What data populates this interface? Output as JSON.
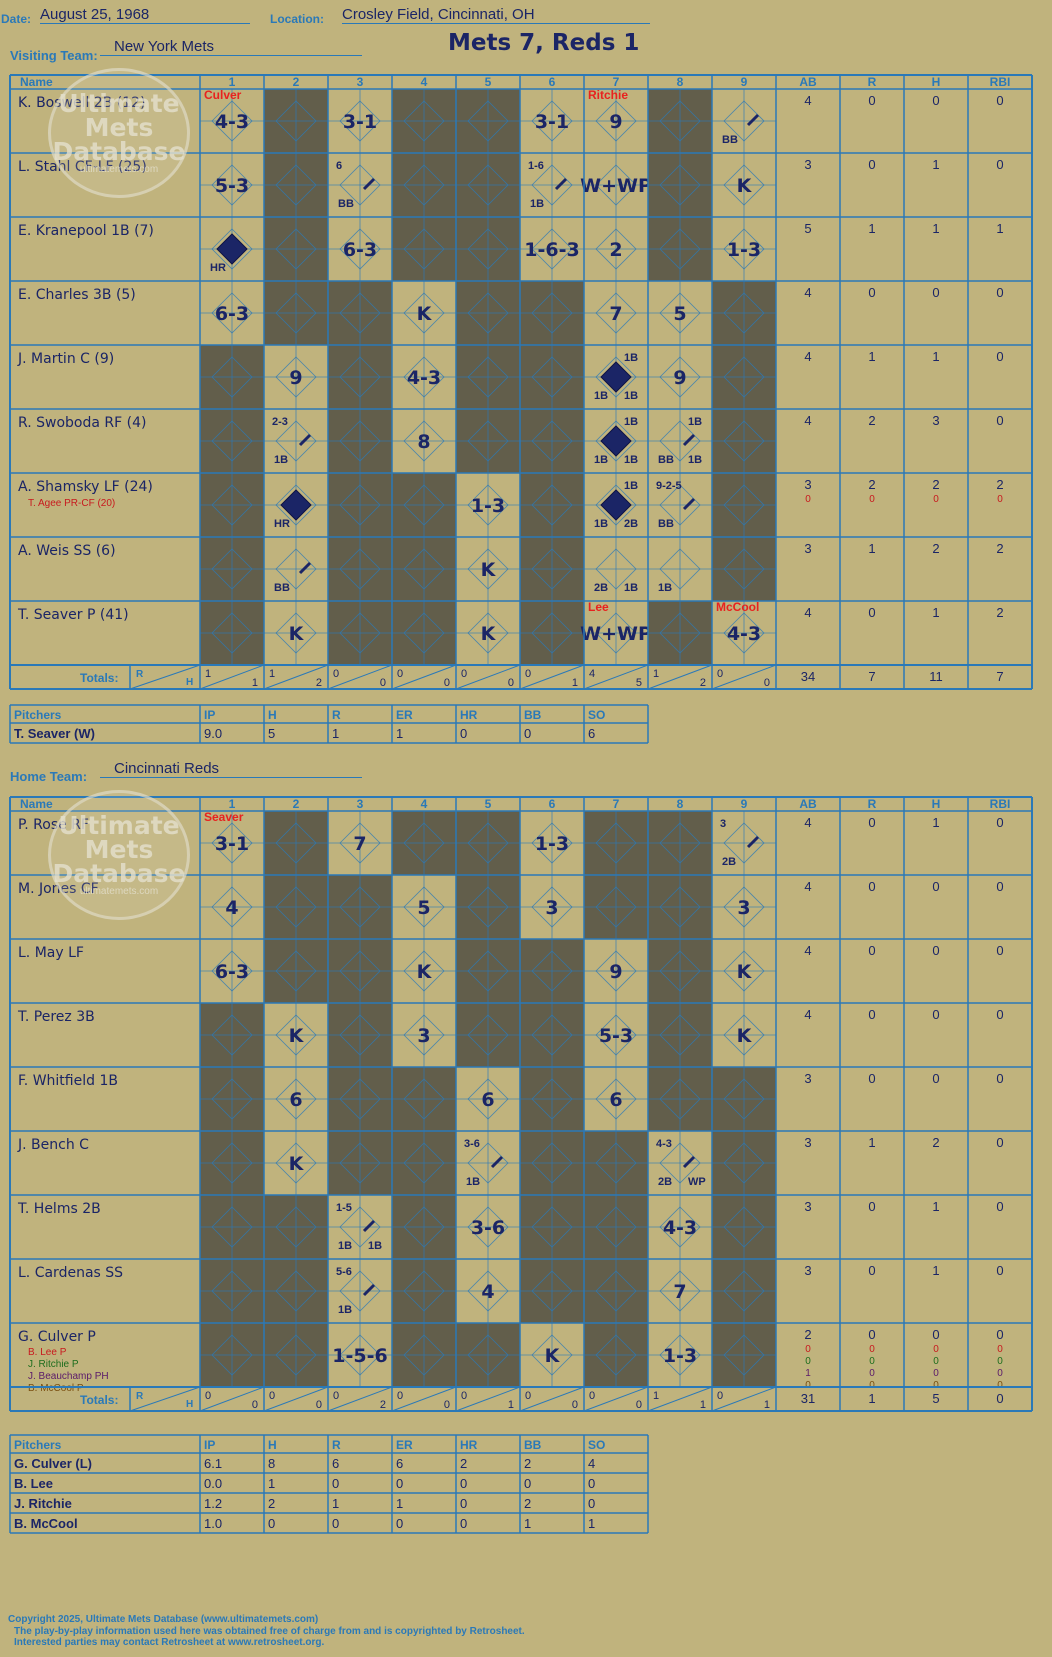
{
  "game": {
    "date_label": "Date:",
    "date": "August 25, 1968",
    "location_label": "Location:",
    "location": "Crosley Field, Cincinnati, OH",
    "title": "Mets 7, Reds 1"
  },
  "watermark": {
    "line1": "Ultimate",
    "line2": "Mets",
    "line3": "Database",
    "url": "ultimatemets.com"
  },
  "headers": {
    "name": "Name",
    "innings": [
      "1",
      "2",
      "3",
      "4",
      "5",
      "6",
      "7",
      "8",
      "9"
    ],
    "stats": [
      "AB",
      "R",
      "H",
      "RBI"
    ],
    "totals": "Totals:",
    "r": "R",
    "h": "H"
  },
  "pitch_headers": [
    "Pitchers",
    "IP",
    "H",
    "R",
    "ER",
    "HR",
    "BB",
    "SO"
  ],
  "visiting": {
    "team_label": "Visiting Team:",
    "team": "New York Mets",
    "batters": [
      {
        "name": "K. Boswell 2B (12)",
        "ab": "4",
        "r": "0",
        "h": "0",
        "rbi": "0",
        "pa": [
          "4-3",
          "",
          "3-1",
          "",
          "",
          "3-1",
          "9",
          "",
          "BB"
        ],
        "notes": [
          [
            "Culver",
            "",
            ""
          ],
          [
            "",
            "",
            ""
          ],
          [
            "",
            "",
            ""
          ],
          [
            "",
            "",
            ""
          ],
          [
            "",
            "",
            ""
          ],
          [
            "",
            "",
            ""
          ],
          [
            "Ritchie",
            "",
            ""
          ],
          [
            "",
            "",
            ""
          ],
          [
            "",
            "",
            ""
          ]
        ],
        "dark": [
          0,
          1,
          0,
          1,
          1,
          0,
          0,
          1,
          0
        ]
      },
      {
        "name": "L. Stahl CF-LF (25)",
        "ab": "3",
        "r": "0",
        "h": "1",
        "rbi": "0",
        "pa": [
          "5-3",
          "",
          "6 BB",
          "",
          "",
          "1-6 1B",
          "W+WP",
          "",
          "K"
        ],
        "dark": [
          0,
          1,
          0,
          1,
          1,
          0,
          0,
          1,
          0
        ]
      },
      {
        "name": "E. Kranepool 1B (7)",
        "ab": "5",
        "r": "1",
        "h": "1",
        "rbi": "1",
        "pa": [
          "HR",
          "",
          "6-3",
          "",
          "",
          "1-6-3",
          "2",
          "",
          "1-3"
        ],
        "dark": [
          0,
          1,
          0,
          1,
          1,
          0,
          0,
          1,
          0
        ]
      },
      {
        "name": "E. Charles 3B (5)",
        "ab": "4",
        "r": "0",
        "h": "0",
        "rbi": "0",
        "pa": [
          "6-3",
          "",
          "",
          "K",
          "",
          "",
          "7",
          "5",
          ""
        ],
        "dark": [
          0,
          1,
          1,
          0,
          1,
          1,
          0,
          0,
          1
        ]
      },
      {
        "name": "J. Martin C (9)",
        "ab": "4",
        "r": "1",
        "h": "1",
        "rbi": "0",
        "pa": [
          "",
          "9",
          "",
          "4-3",
          "",
          "",
          "1B 1B 1B",
          "9",
          ""
        ],
        "dark": [
          1,
          0,
          1,
          0,
          1,
          1,
          0,
          0,
          1
        ]
      },
      {
        "name": "R. Swoboda RF (4)",
        "ab": "4",
        "r": "2",
        "h": "3",
        "rbi": "0",
        "pa": [
          "",
          "2-3 1B",
          "",
          "8",
          "",
          "",
          "1B 1B 1B",
          "BB 1B 1B",
          ""
        ],
        "dark": [
          1,
          0,
          1,
          0,
          1,
          1,
          0,
          0,
          1
        ]
      },
      {
        "name": "A. Shamsky LF (24)",
        "sub": "T. Agee PR-CF (20)",
        "ab": "3",
        "r": "2",
        "h": "2",
        "rbi": "2",
        "sub_stats": [
          "0",
          "0",
          "0",
          "0"
        ],
        "pa": [
          "",
          "HR",
          "",
          "",
          "1-3",
          "",
          "1B 2B 1B",
          "9-2-5 BB",
          ""
        ],
        "dark": [
          1,
          0,
          1,
          1,
          0,
          1,
          0,
          0,
          1
        ]
      },
      {
        "name": "A. Weis SS (6)",
        "ab": "3",
        "r": "1",
        "h": "2",
        "rbi": "2",
        "pa": [
          "",
          "BB",
          "",
          "",
          "K",
          "",
          "2B 1B",
          "1B",
          ""
        ],
        "dark": [
          1,
          0,
          1,
          1,
          0,
          1,
          0,
          0,
          1
        ]
      },
      {
        "name": "T. Seaver P (41)",
        "ab": "4",
        "r": "0",
        "h": "1",
        "rbi": "2",
        "pa": [
          "",
          "K",
          "",
          "",
          "K",
          "",
          "W+WP",
          "",
          "4-3"
        ],
        "dark": [
          1,
          0,
          1,
          1,
          0,
          1,
          0,
          1,
          0
        ]
      }
    ],
    "pitcher_notes": {
      "i7": "Lee",
      "i9": "McCool"
    },
    "totals": {
      "runs": [
        "1",
        "1",
        "0",
        "0",
        "0",
        "0",
        "4",
        "1",
        "0"
      ],
      "hits": [
        "1",
        "2",
        "0",
        "0",
        "0",
        "1",
        "5",
        "2",
        "0"
      ],
      "ab": "34",
      "r": "7",
      "h": "11",
      "rbi": "7"
    },
    "pitchers": [
      {
        "name": "T. Seaver (W)",
        "ip": "9.0",
        "h": "5",
        "r": "1",
        "er": "1",
        "hr": "0",
        "bb": "0",
        "so": "6"
      }
    ]
  },
  "home": {
    "team_label": "Home Team:",
    "team": "Cincinnati Reds",
    "pitcher_notes": {
      "i1": "Seaver"
    },
    "batters": [
      {
        "name": "P. Rose RF",
        "ab": "4",
        "r": "0",
        "h": "1",
        "rbi": "0",
        "pa": [
          "3-1",
          "",
          "7",
          "",
          "",
          "1-3",
          "",
          "",
          "3 2B"
        ],
        "dark": [
          0,
          1,
          0,
          1,
          1,
          0,
          1,
          1,
          0
        ]
      },
      {
        "name": "M. Jones CF",
        "ab": "4",
        "r": "0",
        "h": "0",
        "rbi": "0",
        "pa": [
          "4",
          "",
          "",
          "5",
          "",
          "3",
          "",
          "",
          "3"
        ],
        "dark": [
          0,
          1,
          1,
          0,
          1,
          0,
          1,
          1,
          0
        ]
      },
      {
        "name": "L. May LF",
        "ab": "4",
        "r": "0",
        "h": "0",
        "rbi": "0",
        "pa": [
          "6-3",
          "",
          "",
          "K",
          "",
          "",
          "9",
          "",
          "K"
        ],
        "dark": [
          0,
          1,
          1,
          0,
          1,
          1,
          0,
          1,
          0
        ]
      },
      {
        "name": "T. Perez 3B",
        "ab": "4",
        "r": "0",
        "h": "0",
        "rbi": "0",
        "pa": [
          "",
          "K",
          "",
          "3",
          "",
          "",
          "5-3",
          "",
          "K"
        ],
        "dark": [
          1,
          0,
          1,
          0,
          1,
          1,
          0,
          1,
          0
        ]
      },
      {
        "name": "F. Whitfield 1B",
        "ab": "3",
        "r": "0",
        "h": "0",
        "rbi": "0",
        "pa": [
          "",
          "6",
          "",
          "",
          "6",
          "",
          "6",
          "",
          ""
        ],
        "dark": [
          1,
          0,
          1,
          1,
          0,
          1,
          0,
          1,
          1
        ]
      },
      {
        "name": "J. Bench C",
        "ab": "3",
        "r": "1",
        "h": "2",
        "rbi": "0",
        "pa": [
          "",
          "K",
          "",
          "",
          "3-6 1B",
          "",
          "",
          "4-3 2B WP",
          ""
        ],
        "dark": [
          1,
          0,
          1,
          1,
          0,
          1,
          1,
          0,
          1
        ]
      },
      {
        "name": "T. Helms 2B",
        "ab": "3",
        "r": "0",
        "h": "1",
        "rbi": "0",
        "pa": [
          "",
          "",
          "1-5 1B 1B",
          "",
          "3-6",
          "",
          "",
          "4-3",
          ""
        ],
        "dark": [
          1,
          1,
          0,
          1,
          0,
          1,
          1,
          0,
          1
        ]
      },
      {
        "name": "L. Cardenas SS",
        "ab": "3",
        "r": "0",
        "h": "1",
        "rbi": "0",
        "pa": [
          "",
          "",
          "5-6 1B",
          "",
          "4",
          "",
          "",
          "7",
          ""
        ],
        "dark": [
          1,
          1,
          0,
          1,
          0,
          1,
          1,
          0,
          1
        ]
      },
      {
        "name": "G. Culver P",
        "ab": "2",
        "r": "0",
        "h": "0",
        "rbi": "0",
        "subs": [
          {
            "name": "B. Lee P",
            "color": "#c8191e",
            "stats": [
              "0",
              "0",
              "0",
              "0"
            ]
          },
          {
            "name": "J. Ritchie P",
            "color": "#1d6d1d",
            "stats": [
              "0",
              "0",
              "0",
              "0"
            ]
          },
          {
            "name": "J. Beauchamp PH",
            "color": "#5a1a6a",
            "stats": [
              "1",
              "0",
              "0",
              "0"
            ]
          },
          {
            "name": "B. McCool P",
            "color": "#7a4f10",
            "stats": [
              "0",
              "0",
              "0",
              "0"
            ]
          }
        ],
        "pa": [
          "",
          "",
          "1-5-6",
          "",
          "",
          "K",
          "",
          "1-3",
          ""
        ],
        "dark": [
          1,
          1,
          0,
          1,
          1,
          0,
          1,
          0,
          1
        ]
      }
    ],
    "totals": {
      "runs": [
        "0",
        "0",
        "0",
        "0",
        "0",
        "0",
        "0",
        "1",
        "0"
      ],
      "hits": [
        "0",
        "0",
        "2",
        "0",
        "1",
        "0",
        "0",
        "1",
        "1"
      ],
      "ab": "31",
      "r": "1",
      "h": "5",
      "rbi": "0"
    },
    "pitchers": [
      {
        "name": "G. Culver (L)",
        "ip": "6.1",
        "h": "8",
        "r": "6",
        "er": "6",
        "hr": "2",
        "bb": "2",
        "so": "4"
      },
      {
        "name": "B. Lee",
        "ip": "0.0",
        "h": "1",
        "r": "0",
        "er": "0",
        "hr": "0",
        "bb": "0",
        "so": "0"
      },
      {
        "name": "J. Ritchie",
        "ip": "1.2",
        "h": "2",
        "r": "1",
        "er": "1",
        "hr": "0",
        "bb": "2",
        "so": "0"
      },
      {
        "name": "B. McCool",
        "ip": "1.0",
        "h": "0",
        "r": "0",
        "er": "0",
        "hr": "0",
        "bb": "1",
        "so": "1"
      }
    ]
  },
  "footer": {
    "line1": "Copyright 2025, Ultimate Mets Database (www.ultimatemets.com)",
    "line2": "The play-by-play information used here was obtained free of charge from and is copyrighted by Retrosheet.",
    "line3": "Interested parties may contact Retrosheet at www.retrosheet.org."
  },
  "colors": {
    "background": "#c0b37d",
    "grid": "#2a79b8",
    "dark_cell": "#625e4b",
    "ink": "#1b2566",
    "red": "#e8221f"
  }
}
